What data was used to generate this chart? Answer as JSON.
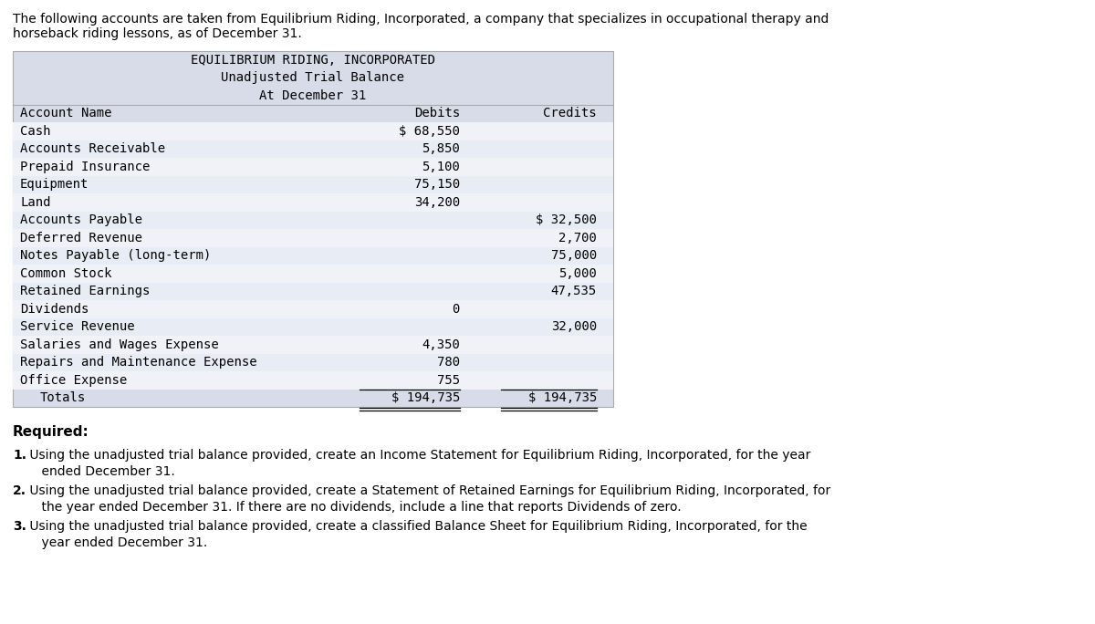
{
  "intro_text_line1": "The following accounts are taken from Equilibrium Riding, Incorporated, a company that specializes in occupational therapy and",
  "intro_text_line2": "horseback riding lessons, as of December 31.",
  "table_title_line1": "EQUILIBRIUM RIDING, INCORPORATED",
  "table_title_line2": "Unadjusted Trial Balance",
  "table_title_line3": "At December 31",
  "col_headers": [
    "Account Name",
    "Debits",
    "Credits"
  ],
  "rows": [
    {
      "account": "Cash",
      "debit": "$ 68,550",
      "credit": ""
    },
    {
      "account": "Accounts Receivable",
      "debit": "5,850",
      "credit": ""
    },
    {
      "account": "Prepaid Insurance",
      "debit": "5,100",
      "credit": ""
    },
    {
      "account": "Equipment",
      "debit": "75,150",
      "credit": ""
    },
    {
      "account": "Land",
      "debit": "34,200",
      "credit": ""
    },
    {
      "account": "Accounts Payable",
      "debit": "",
      "credit": "$ 32,500"
    },
    {
      "account": "Deferred Revenue",
      "debit": "",
      "credit": "2,700"
    },
    {
      "account": "Notes Payable (long-term)",
      "debit": "",
      "credit": "75,000"
    },
    {
      "account": "Common Stock",
      "debit": "",
      "credit": "5,000"
    },
    {
      "account": "Retained Earnings",
      "debit": "",
      "credit": "47,535"
    },
    {
      "account": "Dividends",
      "debit": "0",
      "credit": ""
    },
    {
      "account": "Service Revenue",
      "debit": "",
      "credit": "32,000"
    },
    {
      "account": "Salaries and Wages Expense",
      "debit": "4,350",
      "credit": ""
    },
    {
      "account": "Repairs and Maintenance Expense",
      "debit": "780",
      "credit": ""
    },
    {
      "account": "Office Expense",
      "debit": "755",
      "credit": ""
    }
  ],
  "totals_label": "Totals",
  "totals_debit": "$ 194,735",
  "totals_credit": "$ 194,735",
  "required_label": "Required:",
  "required_items": [
    [
      "1.",
      " Using the unadjusted trial balance provided, create an Income Statement for Equilibrium Riding, Incorporated, for the year\n    ended December 31."
    ],
    [
      "2.",
      " Using the unadjusted trial balance provided, create a Statement of Retained Earnings for Equilibrium Riding, Incorporated, for\n    the year ended December 31. If there are no dividends, include a line that reports Dividends of zero."
    ],
    [
      "3.",
      " Using the unadjusted trial balance provided, create a classified Balance Sheet for Equilibrium Riding, Incorporated, for the\n    year ended December 31."
    ]
  ],
  "table_bg_color": "#d8dce8",
  "alt_row_bg": "#e8ecf4",
  "white_row_bg": "#f0f2f8",
  "body_font_size": 10.0,
  "mono_font": "monospace",
  "sans_font": "DejaVu Sans"
}
